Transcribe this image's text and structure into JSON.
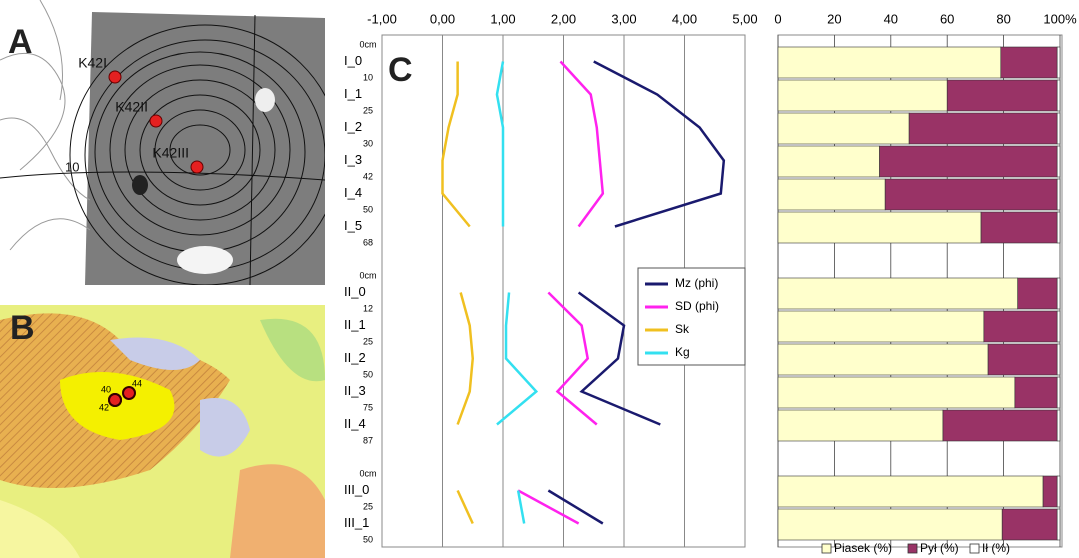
{
  "panels": {
    "a": {
      "label": "A",
      "points": [
        "K42I",
        "K42II",
        "K42III"
      ],
      "contour_label": "10"
    },
    "b": {
      "label": "B",
      "points": [
        "40",
        "42",
        "44"
      ]
    }
  },
  "chart_data": [
    {
      "type": "line",
      "annotation": "C",
      "categories": [
        "I_0",
        "I_1",
        "I_2",
        "I_3",
        "I_4",
        "I_5",
        null,
        "II_0",
        "II_1",
        "II_2",
        "II_3",
        "II_4",
        null,
        "III_0",
        "III_1"
      ],
      "depth_labels": [
        "0cm",
        "10",
        "25",
        "30",
        "42",
        "50",
        "68",
        "0cm",
        "12",
        "25",
        "50",
        "75",
        "87",
        "0cm",
        "25",
        "50"
      ],
      "xlim": [
        -1,
        5
      ],
      "xticks": [
        {
          "value": -1,
          "label": "-1,00"
        },
        {
          "value": 0,
          "label": "0,00"
        },
        {
          "value": 1,
          "label": "1,00"
        },
        {
          "value": 2,
          "label": "2,00"
        },
        {
          "value": 3,
          "label": "3,00"
        },
        {
          "value": 4,
          "label": "4,00"
        },
        {
          "value": 5,
          "label": "5,00"
        }
      ],
      "grid": true,
      "legend": "right",
      "series": [
        {
          "name": "Mz (phi)",
          "color": "#1a1a6e",
          "values": [
            2.5,
            3.55,
            4.25,
            4.65,
            4.6,
            2.85,
            null,
            2.25,
            3.0,
            2.9,
            2.3,
            3.6,
            null,
            1.75,
            2.65
          ]
        },
        {
          "name": "SD (phi)",
          "color": "#ff22ee",
          "values": [
            1.95,
            2.45,
            2.55,
            2.6,
            2.65,
            2.25,
            null,
            1.75,
            2.3,
            2.4,
            1.9,
            2.55,
            null,
            1.25,
            2.25
          ]
        },
        {
          "name": "Sk",
          "color": "#f0c020",
          "values": [
            0.25,
            0.25,
            0.1,
            0.0,
            0.0,
            0.45,
            null,
            0.3,
            0.45,
            0.5,
            0.45,
            0.25,
            null,
            0.25,
            0.5
          ]
        },
        {
          "name": "Kg",
          "color": "#33e0f0",
          "values": [
            1.0,
            0.9,
            1.0,
            1.0,
            1.0,
            1.0,
            null,
            1.1,
            1.05,
            1.05,
            1.55,
            0.9,
            null,
            1.25,
            1.35
          ]
        }
      ]
    },
    {
      "type": "stacked_bar",
      "categories": [
        "I_0",
        "I_1",
        "I_2",
        "I_3",
        "I_4",
        "I_5",
        null,
        "II_0",
        "II_1",
        "II_2",
        "II_3",
        "II_4",
        null,
        "III_0",
        "III_1"
      ],
      "xlim": [
        0,
        100
      ],
      "xticks": [
        0,
        20,
        40,
        60,
        80,
        {
          "value": 100,
          "label": "100%"
        }
      ],
      "grid": true,
      "legend": "bottom",
      "series": [
        {
          "name": "Piasek (%)",
          "color": "#ffffcc",
          "values": [
            79,
            60,
            46.5,
            36,
            38,
            72,
            null,
            85,
            73,
            74.5,
            84,
            58.5,
            null,
            94,
            79.5
          ]
        },
        {
          "name": "Pył (%)",
          "color": "#993366",
          "values": [
            20,
            39,
            52.5,
            63,
            61,
            27,
            null,
            14,
            26,
            24.5,
            15,
            40.5,
            null,
            5,
            19.5
          ]
        },
        {
          "name": "Ił (%)",
          "color": "#ffffff",
          "values": [
            1,
            1,
            1,
            1,
            1,
            1,
            null,
            1,
            1,
            1,
            1,
            1,
            null,
            1,
            1
          ]
        }
      ]
    }
  ]
}
